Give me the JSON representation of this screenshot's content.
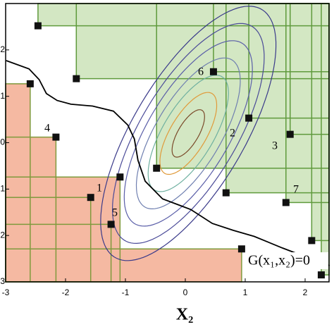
{
  "chart_data": {
    "type": "reliability",
    "xlim": [
      -3,
      2.4
    ],
    "ylim": [
      -3,
      3
    ],
    "xticks": [
      -3,
      -2,
      -1,
      0,
      1,
      2
    ],
    "yticks": [
      -3,
      -2,
      -1,
      0,
      1,
      2
    ],
    "x_label": "X₂",
    "annotation": "G(x₁,x₂)=0",
    "green_region": {
      "fill": "#d3e7c3",
      "stroke": "#5f9a3c",
      "x": [
        -2.46,
        -1.82,
        -0.48,
        0.47,
        1.06,
        1.75,
        0.68,
        1.68,
        2.11,
        2.27
      ],
      "y": [
        2.52,
        1.38,
        -0.55,
        1.53,
        0.53,
        0.18,
        -1.08,
        -1.29,
        -2.11,
        -2.85
      ]
    },
    "red_region": {
      "fill": "#f5b9a2",
      "stroke": "#7f9a3c",
      "x": [
        -2.59,
        -2.16,
        -1.58,
        -1.24,
        -1.09,
        0.94
      ],
      "y": [
        1.27,
        0.12,
        -1.18,
        -1.76,
        -0.74,
        -2.29
      ]
    },
    "contours": {
      "center": [
        0.05,
        0.2
      ],
      "angle": 67,
      "a": [
        0.55,
        0.95,
        1.35,
        1.75,
        2.15,
        2.55,
        2.95
      ],
      "b": [
        0.18,
        0.32,
        0.45,
        0.58,
        0.72,
        0.85,
        0.98
      ],
      "colors": [
        "#7a4a2a",
        "#e09a3a",
        "#6fb0a0",
        "#6f7fb0",
        "#5a5ea8",
        "#4a4a98",
        "#3a3a8a"
      ]
    },
    "contour_labels": [
      "1",
      "2",
      "3",
      "4",
      "5",
      "6",
      "7"
    ],
    "limit_state": {
      "color": "#000",
      "x": [
        -2.99,
        -2.61,
        -2.44,
        -2.32,
        -2.14,
        -1.91,
        -1.55,
        -1.2,
        -0.96,
        -0.85,
        -0.79,
        -0.67,
        -0.38,
        0.09,
        0.45,
        0.8,
        1.15,
        1.62,
        2.09,
        2.41
      ],
      "y": [
        1.77,
        1.59,
        1.36,
        1.06,
        0.91,
        0.83,
        0.79,
        0.68,
        0.38,
        0.08,
        -0.38,
        -0.83,
        -1.21,
        -1.44,
        -1.74,
        -1.89,
        -2.02,
        -2.27,
        -2.5,
        -2.65
      ]
    }
  }
}
